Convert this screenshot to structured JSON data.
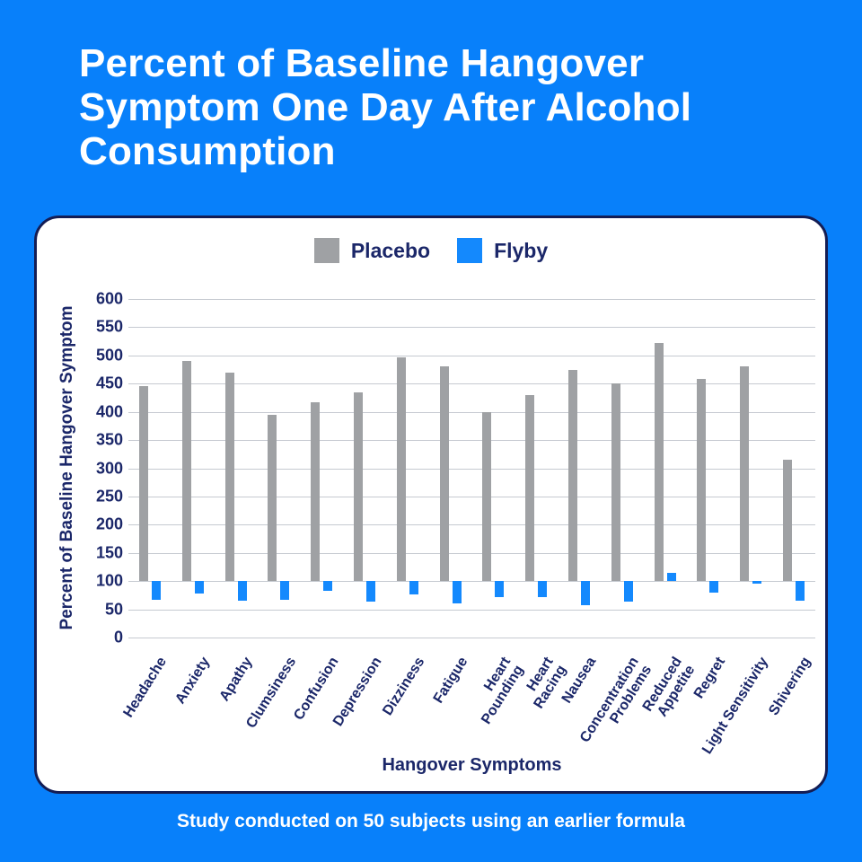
{
  "page": {
    "title_lines": [
      "Percent of Baseline Hangover",
      "Symptom One Day After Alcohol",
      "Consumption"
    ],
    "footnote": "Study conducted on 50 subjects using an earlier formula"
  },
  "colors": {
    "bg": "#0880FA",
    "card_bg": "#FFFFFF",
    "card_border": "#141D54",
    "navy": "#1B2769",
    "grid": "#C6CAD1",
    "placebo_gray": "#9FA1A4",
    "flyby_blue": "#1489FD",
    "title_white": "#FFFFFF"
  },
  "chart_data": {
    "type": "bar",
    "title": "Percent of Baseline Hangover Symptom One Day After Alcohol Consumption",
    "xlabel": "Hangover Symptoms",
    "ylabel": "Percent of Baseline Hangover Symptom",
    "ylim": [
      0,
      600
    ],
    "ytick_step": 50,
    "baseline": 100,
    "grid": true,
    "legend_position": "top-center",
    "bar_rendering_note": "bars are drawn between the 100% baseline and each value",
    "categories": [
      "Headache",
      "Anxiety",
      "Apathy",
      "Clumsiness",
      "Confusion",
      "Depression",
      "Dizziness",
      "Fatigue",
      "Heart\nPounding",
      "Heart\nRacing",
      "Nausea",
      "Concentration\nProblems",
      "Reduced\nAppetite",
      "Regret",
      "Light Sensitivity",
      "Shivering"
    ],
    "series": [
      {
        "name": "Placebo",
        "color": "#9FA1A4",
        "values": [
          445,
          490,
          470,
          395,
          417,
          435,
          497,
          480,
          400,
          430,
          474,
          450,
          522,
          458,
          480,
          315
        ]
      },
      {
        "name": "Flyby",
        "color": "#1489FD",
        "values": [
          67,
          78,
          66,
          67,
          83,
          63,
          77,
          60,
          71,
          72,
          57,
          63,
          114,
          80,
          95,
          65
        ]
      }
    ]
  }
}
